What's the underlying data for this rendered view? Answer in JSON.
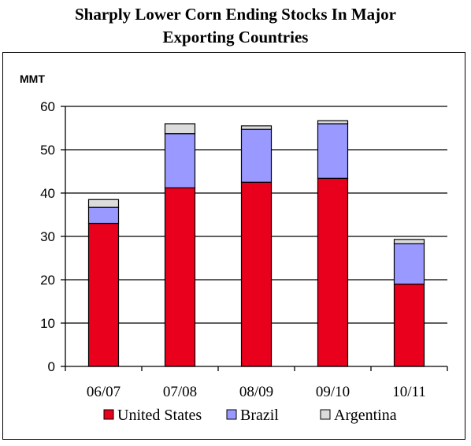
{
  "title_lines": [
    "Sharply Lower Corn Ending Stocks In Major",
    "Exporting Countries"
  ],
  "chart_data": {
    "type": "bar",
    "stacked": true,
    "title": "Sharply Lower Corn Ending Stocks In Major Exporting Countries",
    "ylabel": "MMT",
    "xlabel": "",
    "ylim": [
      0,
      60
    ],
    "yticks": [
      0,
      10,
      20,
      30,
      40,
      50,
      60
    ],
    "grid": true,
    "legend_position": "bottom",
    "categories": [
      "06/07",
      "07/08",
      "08/09",
      "09/10",
      "10/11"
    ],
    "series": [
      {
        "name": "United States",
        "color": "#e8001c",
        "values": [
          33,
          41.2,
          42.5,
          43.4,
          19
        ]
      },
      {
        "name": "Brazil",
        "color": "#9999ff",
        "values": [
          3.7,
          12.5,
          12.2,
          12.6,
          9.3
        ]
      },
      {
        "name": "Argentina",
        "color": "#dcdcdc",
        "values": [
          1.8,
          2.3,
          0.8,
          0.7,
          1
        ]
      }
    ]
  }
}
